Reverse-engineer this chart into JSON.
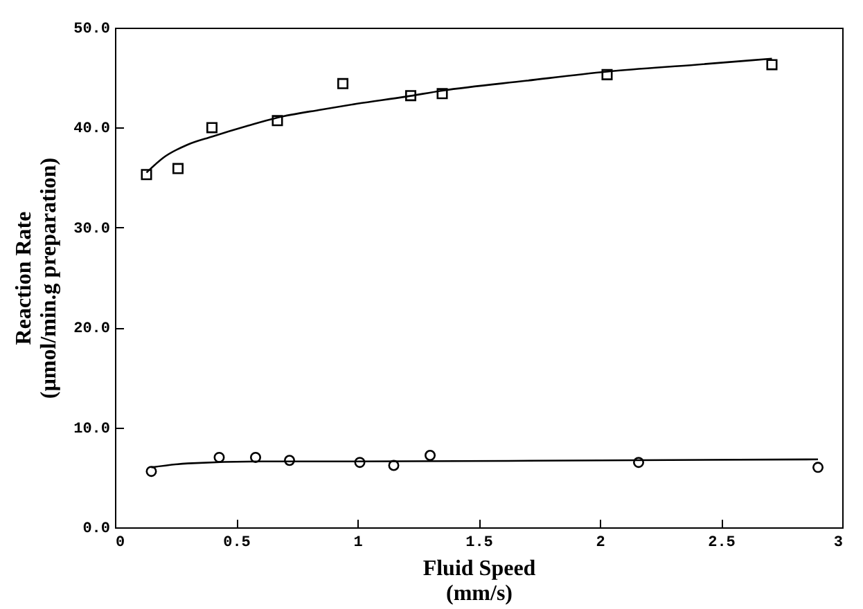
{
  "chart_data": {
    "type": "scatter",
    "xlabel": "Fluid Speed\n(mm/s)",
    "ylabel": "Reaction Rate\n(µmol/min.g preparation)",
    "xlim": [
      0,
      3
    ],
    "xticks": [
      0,
      0.5,
      1,
      1.5,
      2,
      2.5,
      3
    ],
    "ylim": [
      0,
      50
    ],
    "yticks": [
      {
        "value": 0,
        "label": "0.0"
      },
      {
        "value": 10,
        "label": "10.0"
      },
      {
        "value": 20,
        "label": "20.0"
      },
      {
        "value": 30,
        "label": "30.0"
      },
      {
        "value": 40,
        "label": "40.0"
      },
      {
        "value": 50,
        "label": "50.0"
      }
    ],
    "grid": false,
    "series": [
      {
        "marker": "square",
        "color": "#000000",
        "x": [
          0.13,
          0.26,
          0.4,
          0.67,
          0.94,
          1.22,
          1.35,
          2.03,
          2.71
        ],
        "values": [
          35.3,
          35.9,
          40.0,
          40.7,
          44.4,
          43.2,
          43.4,
          45.3,
          46.3
        ]
      },
      {
        "marker": "circle",
        "color": "#000000",
        "x": [
          0.15,
          0.43,
          0.58,
          0.72,
          1.01,
          1.15,
          1.3,
          2.16,
          2.9
        ],
        "values": [
          5.6,
          7.0,
          7.0,
          6.7,
          6.5,
          6.2,
          7.2,
          6.5,
          6.0
        ]
      },
      {
        "type": "line",
        "line_style": "solid",
        "color": "#000000",
        "x": [
          0.13,
          0.2,
          0.3,
          0.4,
          0.55,
          0.67,
          0.85,
          1.0,
          1.2,
          1.35,
          1.7,
          2.03,
          2.4,
          2.71
        ],
        "values": [
          35.5,
          37.0,
          38.3,
          39.1,
          40.2,
          41.0,
          41.8,
          42.4,
          43.1,
          43.7,
          44.7,
          45.6,
          46.3,
          46.9
        ]
      },
      {
        "type": "line",
        "line_style": "solid",
        "color": "#000000",
        "x": [
          0.15,
          0.3,
          0.6,
          1.0,
          2.0,
          2.9
        ],
        "values": [
          6.0,
          6.4,
          6.6,
          6.6,
          6.7,
          6.8
        ]
      }
    ]
  }
}
